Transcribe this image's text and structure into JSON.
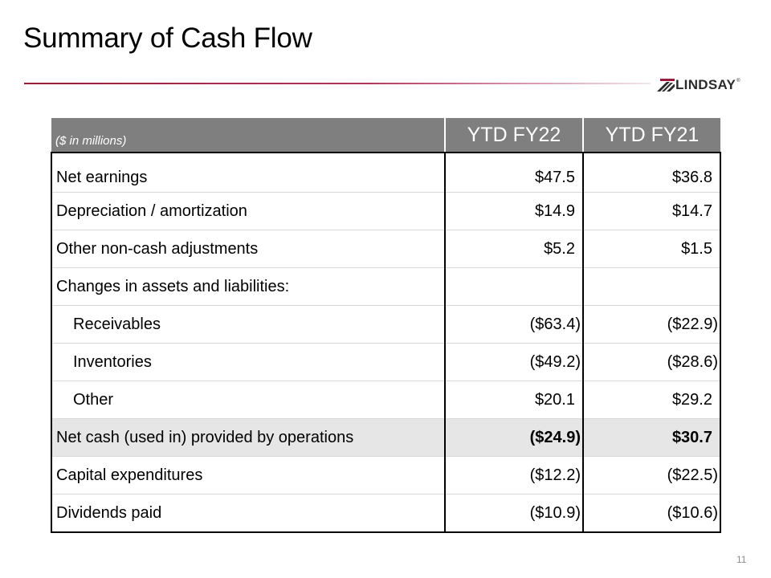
{
  "slide": {
    "title": "Summary of Cash Flow",
    "page_number": "11",
    "accent_color": "#9b1b3e"
  },
  "logo": {
    "text": "LINDSAY",
    "tm": "®",
    "icon": "lindsay-stripes-icon"
  },
  "table": {
    "units": "($ in millions)",
    "columns": [
      "YTD FY22",
      "YTD FY21"
    ],
    "rows": [
      {
        "label": "Net earnings",
        "fy22": "$47.5",
        "fy21": "$36.8"
      },
      {
        "label": "Depreciation / amortization",
        "fy22": "$14.9",
        "fy21": "$14.7"
      },
      {
        "label": "Other non-cash adjustments",
        "fy22": "$5.2",
        "fy21": "$1.5"
      },
      {
        "label": "Changes in assets and liabilities:",
        "fy22": "",
        "fy21": ""
      },
      {
        "label": "Receivables",
        "fy22": "($63.4)",
        "fy21": "($22.9)"
      },
      {
        "label": "Inventories",
        "fy22": "($49.2)",
        "fy21": "($28.6)"
      },
      {
        "label": "Other",
        "fy22": "$20.1",
        "fy21": "$29.2"
      },
      {
        "label": "Net cash (used in) provided by operations",
        "fy22": "($24.9)",
        "fy21": "$30.7"
      },
      {
        "label": "Capital expenditures",
        "fy22": "($12.2)",
        "fy21": "($22.5)"
      },
      {
        "label": "Dividends paid",
        "fy22": "($10.9)",
        "fy21": "($10.6)"
      }
    ]
  }
}
